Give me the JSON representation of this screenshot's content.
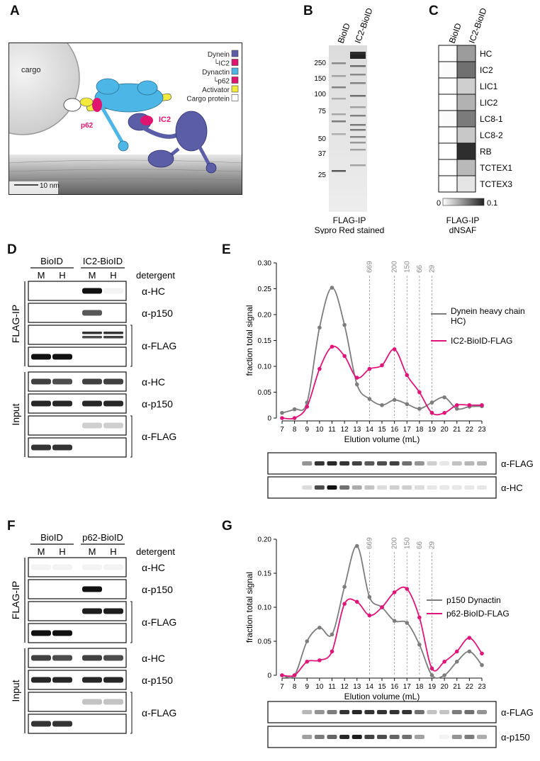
{
  "panels": {
    "A": "A",
    "B": "B",
    "C": "C",
    "D": "D",
    "E": "E",
    "F": "F",
    "G": "G"
  },
  "panelA": {
    "cargo": "cargo",
    "scalebar": "10 nm",
    "ic2": "IC2",
    "p62": "p62",
    "legend": [
      {
        "label": "Dynein",
        "color": "#5b5ea6"
      },
      {
        "label": "└IC2",
        "color": "#e0156f"
      },
      {
        "label": "Dynactin",
        "color": "#4cb7e6"
      },
      {
        "label": "└p62",
        "color": "#e0156f"
      },
      {
        "label": "Activator",
        "color": "#f2ea3c"
      },
      {
        "label": "Cargo protein",
        "color": "#ffffff"
      }
    ]
  },
  "panelB": {
    "lanes": [
      "BioID",
      "IC2-BioID"
    ],
    "markers": [
      "250",
      "150",
      "100",
      "75",
      "50",
      "37",
      "25"
    ],
    "caption1": "FLAG-IP",
    "caption2": "Sypro Red stained"
  },
  "panelC": {
    "columns": [
      "BioID",
      "IC2-BioID"
    ],
    "rows": [
      "HC",
      "IC2",
      "LIC1",
      "LIC2",
      "LC8-1",
      "LC8-2",
      "RB",
      "TCTEX1",
      "TCTEX3"
    ],
    "bioid": [
      0.0,
      0.002,
      0.0,
      0.0,
      0.002,
      0.0,
      0.0,
      0.0,
      0.0
    ],
    "ic2bioid": [
      0.045,
      0.065,
      0.022,
      0.035,
      0.06,
      0.025,
      0.095,
      0.032,
      0.012
    ],
    "scale_min": "0",
    "scale_max": "0.1",
    "caption1": "FLAG-IP",
    "caption2": "dNSAF"
  },
  "panelD": {
    "groups": [
      "BioID",
      "IC2-BioID"
    ],
    "lanes": [
      "M",
      "H",
      "M",
      "H"
    ],
    "detergent": "detergent",
    "section_ip": "FLAG-IP",
    "section_input": "Input",
    "blots_ip": [
      "α-HC",
      "α-p150",
      "α-FLAG"
    ],
    "blots_input": [
      "α-HC",
      "α-p150",
      "α-FLAG"
    ]
  },
  "panelF": {
    "groups": [
      "BioID",
      "p62-BioID"
    ],
    "lanes": [
      "M",
      "H",
      "M",
      "H"
    ],
    "detergent": "detergent",
    "section_ip": "FLAG-IP",
    "section_input": "Input",
    "blots_ip": [
      "α-HC",
      "α-p150",
      "α-FLAG"
    ],
    "blots_input": [
      "α-HC",
      "α-p150",
      "α-FLAG"
    ]
  },
  "chart_data": [
    {
      "type": "line",
      "panel": "E",
      "ylabel": "fraction total signal",
      "xlabel": "Elution volume (mL)",
      "x": [
        7,
        8,
        9,
        10,
        11,
        12,
        13,
        14,
        15,
        16,
        17,
        18,
        19,
        20,
        21,
        22,
        23
      ],
      "ylim": [
        0,
        0.3
      ],
      "yticks": [
        "0",
        "0.05",
        "0.10",
        "0.15",
        "0.20",
        "0.25",
        "0.30"
      ],
      "markers": [
        "669",
        "200",
        "150",
        "66",
        "29"
      ],
      "marker_x": [
        14,
        16,
        17,
        18,
        19
      ],
      "series": [
        {
          "name": "Dynein heavy chain (HC)",
          "color": "#7d7d7d",
          "values": [
            0.01,
            0.017,
            0.03,
            0.175,
            0.252,
            0.18,
            0.065,
            0.037,
            0.025,
            0.035,
            0.027,
            0.018,
            0.03,
            0.04,
            0.018,
            0.022,
            0.023
          ]
        },
        {
          "name": "IC2-BioID-FLAG",
          "color": "#e0157a",
          "values": [
            0.0,
            0.0,
            0.022,
            0.095,
            0.138,
            0.12,
            0.078,
            0.095,
            0.102,
            0.133,
            0.083,
            0.05,
            0.01,
            0.01,
            0.025,
            0.025,
            0.025
          ]
        }
      ],
      "blots": [
        "α-FLAG",
        "α-HC"
      ]
    },
    {
      "type": "line",
      "panel": "G",
      "ylabel": "fraction total signal",
      "xlabel": "Elution volume (mL)",
      "x": [
        7,
        8,
        9,
        10,
        11,
        12,
        13,
        14,
        15,
        16,
        17,
        18,
        19,
        20,
        21,
        22,
        23
      ],
      "ylim": [
        0,
        0.2
      ],
      "yticks": [
        "0",
        "0.05",
        "0.10",
        "0.15",
        "0.20"
      ],
      "markers": [
        "669",
        "200",
        "150",
        "66",
        "29"
      ],
      "marker_x": [
        14,
        16,
        17,
        18,
        19
      ],
      "series": [
        {
          "name": "p150 Dynactin",
          "color": "#7d7d7d",
          "values": [
            0.0,
            0.0,
            0.05,
            0.07,
            0.06,
            0.13,
            0.19,
            0.115,
            0.1,
            0.08,
            0.077,
            0.045,
            0.0,
            0.0,
            0.02,
            0.035,
            0.015
          ]
        },
        {
          "name": "p62-BioID-FLAG",
          "color": "#e0157a",
          "values": [
            0.0,
            0.0,
            0.02,
            0.022,
            0.035,
            0.105,
            0.108,
            0.088,
            0.1,
            0.122,
            0.127,
            0.085,
            0.01,
            0.02,
            0.035,
            0.055,
            0.032
          ]
        }
      ],
      "blots": [
        "α-FLAG",
        "α-p150"
      ]
    }
  ]
}
